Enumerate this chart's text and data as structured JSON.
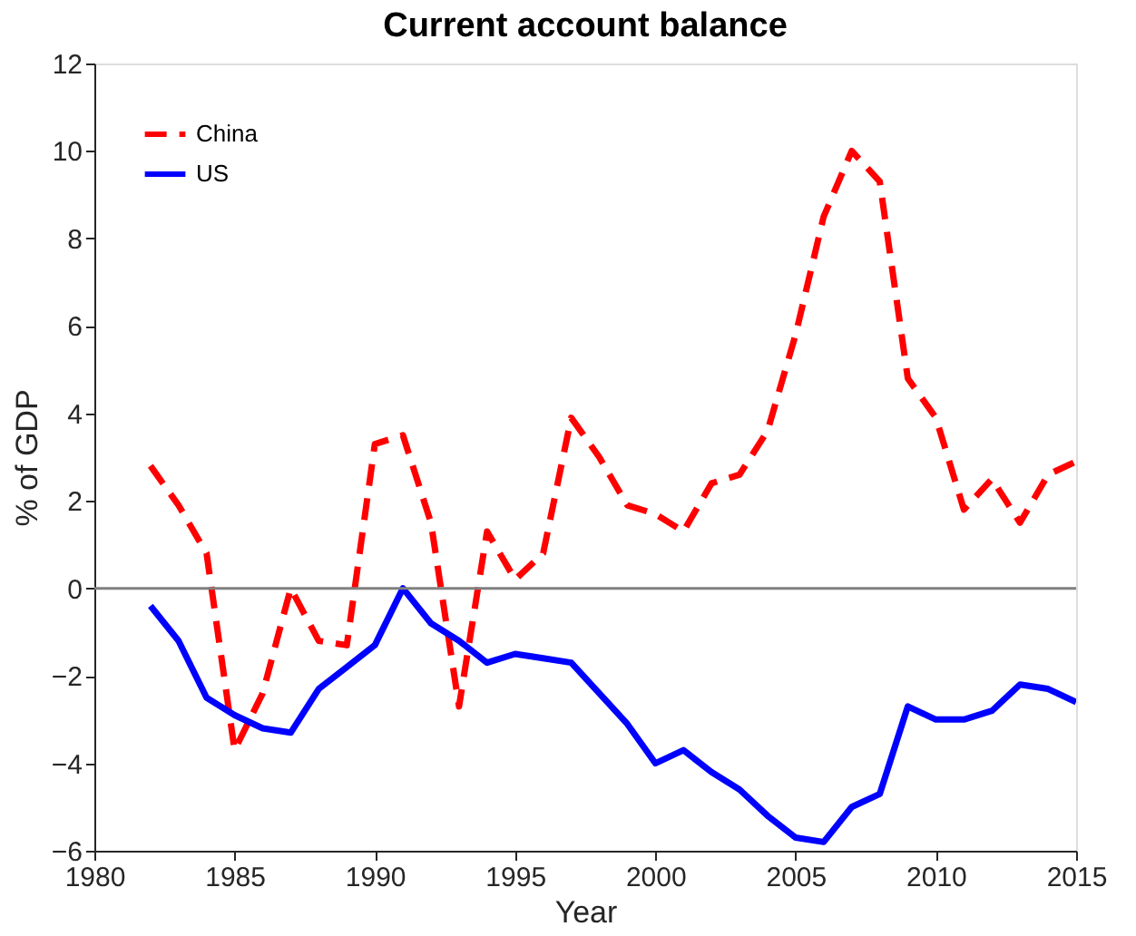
{
  "chart_data": {
    "type": "line",
    "title": "Current account balance",
    "xlabel": "Year",
    "ylabel": "% of GDP",
    "x": [
      1982,
      1983,
      1984,
      1985,
      1986,
      1987,
      1988,
      1989,
      1990,
      1991,
      1992,
      1993,
      1994,
      1995,
      1996,
      1997,
      1998,
      1999,
      2000,
      2001,
      2002,
      2003,
      2004,
      2005,
      2006,
      2007,
      2008,
      2009,
      2010,
      2011,
      2012,
      2013,
      2014,
      2015
    ],
    "series": [
      {
        "name": "China",
        "color": "#ff0000",
        "line_style": "dashed",
        "values": [
          2.8,
          1.9,
          0.8,
          -3.7,
          -2.4,
          0.0,
          -1.2,
          -1.3,
          3.3,
          3.5,
          1.5,
          -2.7,
          1.3,
          0.2,
          0.8,
          3.9,
          3.0,
          1.9,
          1.7,
          1.3,
          2.4,
          2.6,
          3.6,
          5.8,
          8.5,
          10.0,
          9.3,
          4.8,
          3.9,
          1.8,
          2.5,
          1.5,
          2.6,
          2.9
        ]
      },
      {
        "name": "US",
        "color": "#0000ff",
        "line_style": "solid",
        "values": [
          -0.4,
          -1.2,
          -2.5,
          -2.9,
          -3.2,
          -3.3,
          -2.3,
          -1.8,
          -1.3,
          0.0,
          -0.8,
          -1.2,
          -1.7,
          -1.5,
          -1.6,
          -1.7,
          -2.4,
          -3.1,
          -4.0,
          -3.7,
          -4.2,
          -4.6,
          -5.2,
          -5.7,
          -5.8,
          -5.0,
          -4.7,
          -2.7,
          -3.0,
          -3.0,
          -2.8,
          -2.2,
          -2.3,
          -2.6
        ]
      }
    ],
    "xlim": [
      1980,
      2015
    ],
    "xticks": [
      1980,
      1985,
      1990,
      1995,
      2000,
      2005,
      2010,
      2015
    ],
    "ylim": [
      -6,
      12
    ],
    "yticks": [
      -6,
      -4,
      -2,
      0,
      2,
      4,
      6,
      8,
      10,
      12
    ],
    "ref_lines": [
      {
        "axis": "y",
        "value": 0,
        "color": "#808080"
      }
    ],
    "legend": "top left",
    "grid": false
  }
}
